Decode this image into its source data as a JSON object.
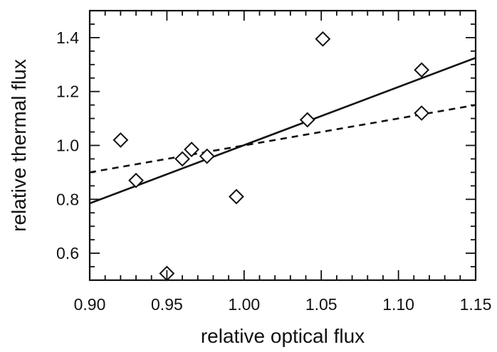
{
  "chart_data": {
    "type": "scatter",
    "title": "",
    "xlabel": "relative optical flux",
    "ylabel": "relative thermal flux",
    "xlim": [
      0.9,
      1.15
    ],
    "ylim": [
      0.5,
      1.5
    ],
    "xticks": [
      "0.90",
      "0.95",
      "1.00",
      "1.05",
      "1.10",
      "1.15"
    ],
    "yticks": [
      "0.6",
      "0.8",
      "1.0",
      "1.2",
      "1.4"
    ],
    "grid": false,
    "series": [
      {
        "marker": "diamond",
        "points": [
          {
            "x": 0.92,
            "y": 1.02
          },
          {
            "x": 0.93,
            "y": 0.87
          },
          {
            "x": 0.95,
            "y": 0.525
          },
          {
            "x": 0.96,
            "y": 0.95
          },
          {
            "x": 0.966,
            "y": 0.985
          },
          {
            "x": 0.976,
            "y": 0.96
          },
          {
            "x": 0.995,
            "y": 0.81
          },
          {
            "x": 1.041,
            "y": 1.095
          },
          {
            "x": 1.051,
            "y": 1.395
          },
          {
            "x": 1.115,
            "y": 1.28
          },
          {
            "x": 1.115,
            "y": 1.12
          }
        ]
      }
    ],
    "lines": [
      {
        "style": "solid",
        "from": [
          0.9,
          0.785
        ],
        "to": [
          1.15,
          1.325
        ]
      },
      {
        "style": "dashed",
        "from": [
          0.9,
          0.9
        ],
        "to": [
          1.15,
          1.15
        ]
      }
    ]
  }
}
